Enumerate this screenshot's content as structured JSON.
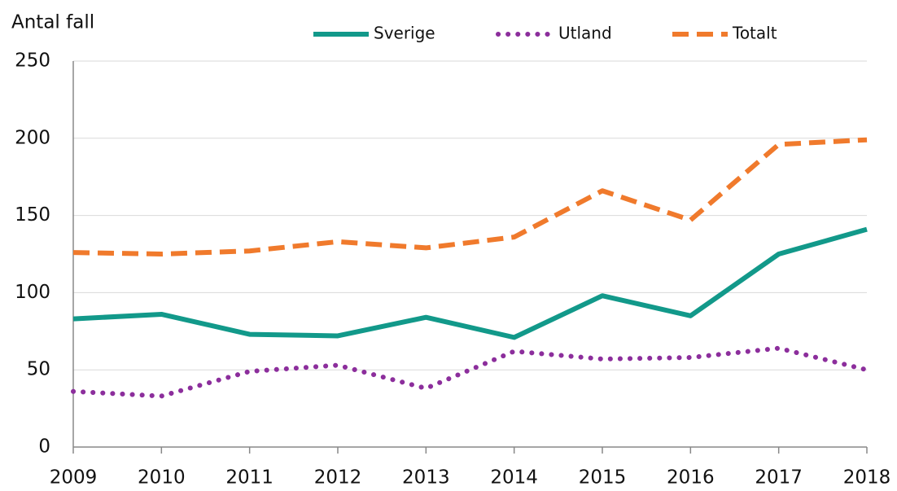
{
  "chart_data": {
    "type": "line",
    "ylabel": "Antal fall",
    "x": [
      2009,
      2010,
      2011,
      2012,
      2013,
      2014,
      2015,
      2016,
      2017,
      2018
    ],
    "xlim": [
      2009,
      2018
    ],
    "xticks": [
      2009,
      2010,
      2011,
      2012,
      2013,
      2014,
      2015,
      2016,
      2017,
      2018
    ],
    "ylim": [
      0,
      250
    ],
    "yticks": [
      0,
      50,
      100,
      150,
      200,
      250
    ],
    "grid": true,
    "legend": "top",
    "series": [
      {
        "name": "Sverige",
        "color": "#12998a",
        "style": "solid",
        "values": [
          83,
          86,
          73,
          72,
          84,
          71,
          98,
          85,
          125,
          141
        ]
      },
      {
        "name": "Utland",
        "color": "#8c2e9c",
        "style": "dotted",
        "values": [
          36,
          33,
          49,
          53,
          38,
          62,
          57,
          58,
          64,
          50
        ]
      },
      {
        "name": "Totalt",
        "color": "#f07a2c",
        "style": "dashed",
        "values": [
          126,
          125,
          127,
          133,
          129,
          136,
          166,
          147,
          196,
          199
        ]
      }
    ]
  }
}
